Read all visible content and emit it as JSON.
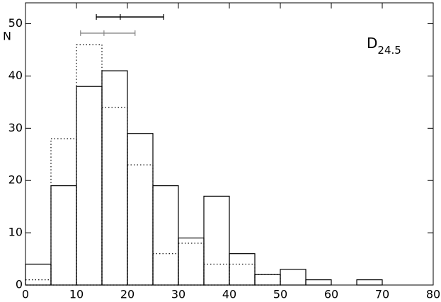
{
  "chart_data": {
    "type": "histogram",
    "y_label": "N",
    "annotation": {
      "text": "D",
      "subscript": "24.5"
    },
    "bins": [
      0,
      5,
      10,
      15,
      20,
      25,
      30,
      35,
      40,
      45,
      50,
      55,
      60,
      65,
      70
    ],
    "series": [
      {
        "style": "dotted",
        "color": "#000000",
        "values": [
          1,
          28,
          46,
          34,
          23,
          6,
          8,
          4,
          4,
          2,
          0,
          0,
          0,
          0
        ]
      },
      {
        "style": "solid",
        "color": "#000000",
        "values": [
          4,
          19,
          38,
          41,
          29,
          19,
          9,
          17,
          6,
          2,
          3,
          1,
          0,
          1
        ]
      }
    ],
    "error_bars": [
      {
        "color": "#000000",
        "y": 51.3,
        "x": 18.6,
        "xlow": 13.9,
        "xhigh": 27.1
      },
      {
        "color": "#888888",
        "y": 48.2,
        "x": 15.4,
        "xlow": 10.8,
        "xhigh": 21.5
      }
    ],
    "xlim": [
      0,
      80
    ],
    "xticks": [
      0,
      10,
      20,
      30,
      40,
      50,
      60,
      70,
      80
    ],
    "ylim": [
      0,
      54
    ],
    "yticks": [
      0,
      10,
      20,
      30,
      40,
      50
    ]
  }
}
